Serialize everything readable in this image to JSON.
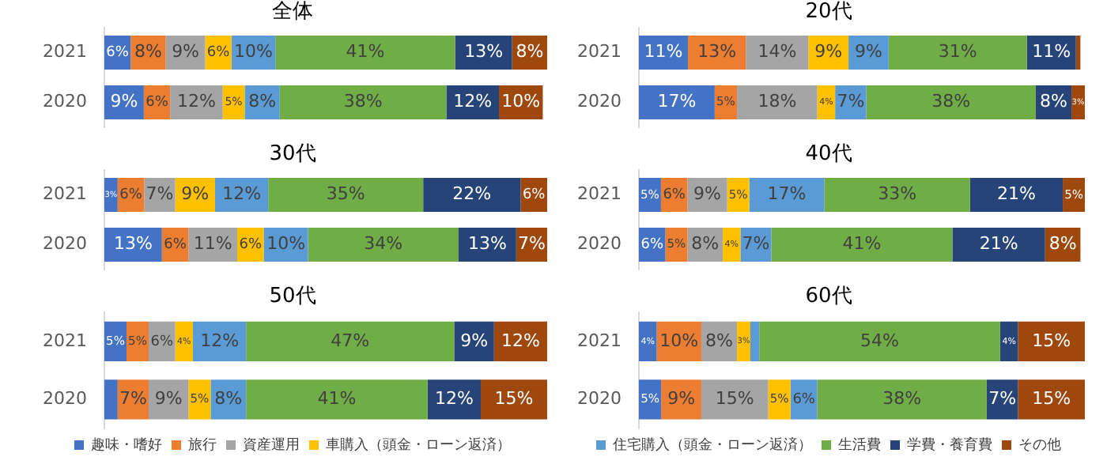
{
  "chart_data": [
    {
      "type": "bar",
      "orientation": "horizontal",
      "stacked": true,
      "title": "全体",
      "categories": [
        "2021",
        "2020"
      ],
      "tick_labels": "y",
      "legend": false,
      "series": [
        {
          "color": "#4472c4",
          "values": [
            6,
            9
          ],
          "value_labels": [
            "6%",
            "9%"
          ]
        },
        {
          "color": "#ed7d31",
          "values": [
            8,
            6
          ],
          "value_labels": [
            "8%",
            "6%"
          ]
        },
        {
          "color": "#a5a5a5",
          "values": [
            9,
            12
          ],
          "value_labels": [
            "9%",
            "12%"
          ]
        },
        {
          "color": "#ffc000",
          "values": [
            6,
            5
          ],
          "value_labels": [
            "6%",
            "5%"
          ]
        },
        {
          "color": "#5b9bd5",
          "values": [
            10,
            8
          ],
          "value_labels": [
            "10%",
            "8%"
          ]
        },
        {
          "color": "#70ad47",
          "values": [
            41,
            38
          ],
          "value_labels": [
            "41%",
            "38%"
          ]
        },
        {
          "color": "#264478",
          "values": [
            13,
            12
          ],
          "value_labels": [
            "13%",
            "12%"
          ]
        },
        {
          "color": "#9e480e",
          "values": [
            8,
            10
          ],
          "value_labels": [
            "8%",
            "10%"
          ]
        }
      ]
    },
    {
      "type": "bar",
      "orientation": "horizontal",
      "stacked": true,
      "title": "20代",
      "categories": [
        "2021",
        "2020"
      ],
      "tick_labels": "y",
      "legend": false,
      "series": [
        {
          "color": "#4472c4",
          "values": [
            11,
            17
          ],
          "value_labels": [
            "11%",
            "17%"
          ]
        },
        {
          "color": "#ed7d31",
          "values": [
            13,
            5
          ],
          "value_labels": [
            "13%",
            "5%"
          ]
        },
        {
          "color": "#a5a5a5",
          "values": [
            14,
            18
          ],
          "value_labels": [
            "14%",
            "18%"
          ]
        },
        {
          "color": "#ffc000",
          "values": [
            9,
            4
          ],
          "value_labels": [
            "9%",
            "4%"
          ]
        },
        {
          "color": "#5b9bd5",
          "values": [
            9,
            7
          ],
          "value_labels": [
            "9%",
            "7%"
          ]
        },
        {
          "color": "#70ad47",
          "values": [
            31,
            38
          ],
          "value_labels": [
            "31%",
            "38%"
          ]
        },
        {
          "color": "#264478",
          "values": [
            11,
            8
          ],
          "value_labels": [
            "11%",
            "8%"
          ]
        },
        {
          "color": "#9e480e",
          "values": [
            1,
            3
          ],
          "value_labels": [
            null,
            "3%"
          ]
        }
      ]
    },
    {
      "type": "bar",
      "orientation": "horizontal",
      "stacked": true,
      "title": "30代",
      "categories": [
        "2021",
        "2020"
      ],
      "tick_labels": "y",
      "legend": false,
      "series": [
        {
          "color": "#4472c4",
          "values": [
            3,
            13
          ],
          "value_labels": [
            "3%",
            "13%"
          ]
        },
        {
          "color": "#ed7d31",
          "values": [
            6,
            6
          ],
          "value_labels": [
            "6%",
            "6%"
          ]
        },
        {
          "color": "#a5a5a5",
          "values": [
            7,
            11
          ],
          "value_labels": [
            "7%",
            "11%"
          ]
        },
        {
          "color": "#ffc000",
          "values": [
            9,
            6
          ],
          "value_labels": [
            "9%",
            "6%"
          ]
        },
        {
          "color": "#5b9bd5",
          "values": [
            12,
            10
          ],
          "value_labels": [
            "12%",
            "10%"
          ]
        },
        {
          "color": "#70ad47",
          "values": [
            35,
            34
          ],
          "value_labels": [
            "35%",
            "34%"
          ]
        },
        {
          "color": "#264478",
          "values": [
            22,
            13
          ],
          "value_labels": [
            "22%",
            "13%"
          ]
        },
        {
          "color": "#9e480e",
          "values": [
            6,
            7
          ],
          "value_labels": [
            "6%",
            "7%"
          ]
        }
      ]
    },
    {
      "type": "bar",
      "orientation": "horizontal",
      "stacked": true,
      "title": "40代",
      "categories": [
        "2021",
        "2020"
      ],
      "tick_labels": "y",
      "legend": false,
      "series": [
        {
          "color": "#4472c4",
          "values": [
            5,
            6
          ],
          "value_labels": [
            "5%",
            "6%"
          ]
        },
        {
          "color": "#ed7d31",
          "values": [
            6,
            5
          ],
          "value_labels": [
            "6%",
            "5%"
          ]
        },
        {
          "color": "#a5a5a5",
          "values": [
            9,
            8
          ],
          "value_labels": [
            "9%",
            "8%"
          ]
        },
        {
          "color": "#ffc000",
          "values": [
            5,
            4
          ],
          "value_labels": [
            "5%",
            "4%"
          ]
        },
        {
          "color": "#5b9bd5",
          "values": [
            17,
            7
          ],
          "value_labels": [
            "17%",
            "7%"
          ]
        },
        {
          "color": "#70ad47",
          "values": [
            33,
            41
          ],
          "value_labels": [
            "33%",
            "41%"
          ]
        },
        {
          "color": "#264478",
          "values": [
            21,
            21
          ],
          "value_labels": [
            "21%",
            "21%"
          ]
        },
        {
          "color": "#9e480e",
          "values": [
            5,
            8
          ],
          "value_labels": [
            "5%",
            "8%"
          ]
        }
      ]
    },
    {
      "type": "bar",
      "orientation": "horizontal",
      "stacked": true,
      "title": "50代",
      "categories": [
        "2021",
        "2020"
      ],
      "tick_labels": "y",
      "legend": "bottom",
      "series": [
        {
          "name": "趣味・嗜好",
          "color": "#4472c4",
          "values": [
            5,
            3
          ],
          "value_labels": [
            "5%",
            null
          ]
        },
        {
          "name": "旅行",
          "color": "#ed7d31",
          "values": [
            5,
            7
          ],
          "value_labels": [
            "5%",
            "7%"
          ]
        },
        {
          "name": "資産運用",
          "color": "#a5a5a5",
          "values": [
            6,
            9
          ],
          "value_labels": [
            "6%",
            "9%"
          ]
        },
        {
          "name": "車購入（頭金・ローン返済）",
          "color": "#ffc000",
          "values": [
            4,
            5
          ],
          "value_labels": [
            "4%",
            "5%"
          ]
        },
        {
          "color": "#5b9bd5",
          "values": [
            12,
            8
          ],
          "value_labels": [
            "12%",
            "8%"
          ]
        },
        {
          "color": "#70ad47",
          "values": [
            47,
            41
          ],
          "value_labels": [
            "47%",
            "41%"
          ]
        },
        {
          "color": "#264478",
          "values": [
            9,
            12
          ],
          "value_labels": [
            "9%",
            "12%"
          ]
        },
        {
          "color": "#9e480e",
          "values": [
            12,
            15
          ],
          "value_labels": [
            "12%",
            "15%"
          ]
        }
      ]
    },
    {
      "type": "bar",
      "orientation": "horizontal",
      "stacked": true,
      "title": "60代",
      "categories": [
        "2021",
        "2020"
      ],
      "tick_labels": "y",
      "legend": "bottom",
      "series": [
        {
          "color": "#4472c4",
          "values": [
            4,
            5
          ],
          "value_labels": [
            "4%",
            "5%"
          ]
        },
        {
          "color": "#ed7d31",
          "values": [
            10,
            9
          ],
          "value_labels": [
            "10%",
            "9%"
          ]
        },
        {
          "color": "#a5a5a5",
          "values": [
            8,
            15
          ],
          "value_labels": [
            "8%",
            "15%"
          ]
        },
        {
          "color": "#ffc000",
          "values": [
            3,
            5
          ],
          "value_labels": [
            "3%",
            "5%"
          ]
        },
        {
          "name": "住宅購入（頭金・ローン返済）",
          "color": "#5b9bd5",
          "values": [
            2,
            6
          ],
          "value_labels": [
            null,
            "6%"
          ]
        },
        {
          "name": "生活費",
          "color": "#70ad47",
          "values": [
            54,
            38
          ],
          "value_labels": [
            "54%",
            "38%"
          ]
        },
        {
          "name": "学費・養育費",
          "color": "#264478",
          "values": [
            4,
            7
          ],
          "value_labels": [
            "4%",
            "7%"
          ]
        },
        {
          "name": "その他",
          "color": "#9e480e",
          "values": [
            15,
            15
          ],
          "value_labels": [
            "15%",
            "15%"
          ]
        }
      ]
    }
  ]
}
